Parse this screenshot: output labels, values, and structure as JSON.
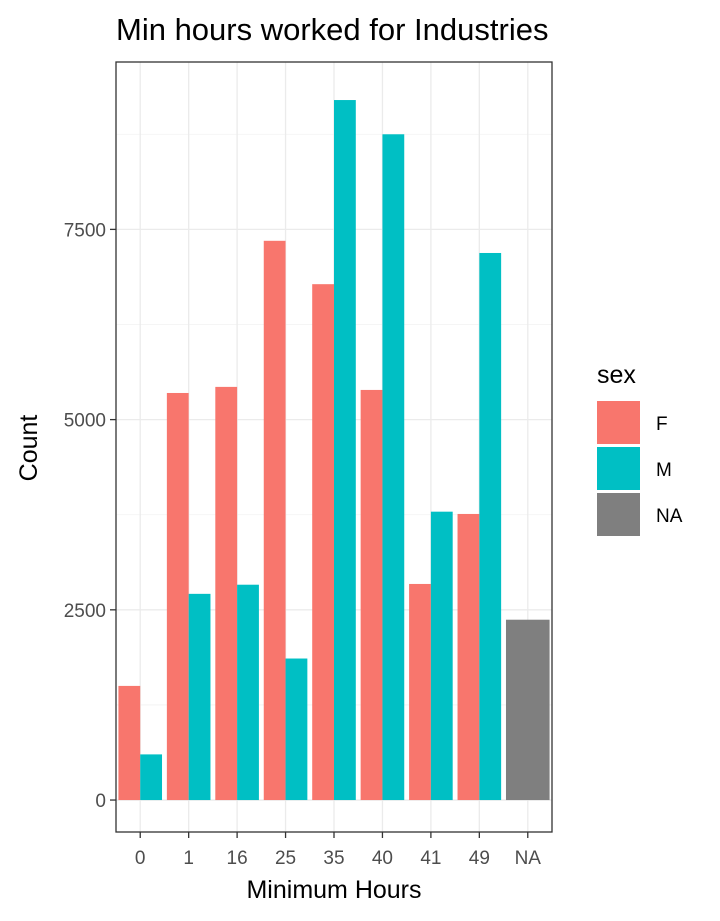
{
  "chart_data": {
    "type": "bar",
    "title": "Min hours worked for Industries",
    "xlabel": "Minimum Hours",
    "ylabel": "Count",
    "categories": [
      "0",
      "1",
      "16",
      "25",
      "35",
      "40",
      "41",
      "49",
      "NA"
    ],
    "series": [
      {
        "name": "F",
        "values": [
          1500,
          5350,
          5430,
          7350,
          6780,
          5390,
          2840,
          3760,
          null
        ]
      },
      {
        "name": "M",
        "values": [
          600,
          2710,
          2830,
          1860,
          9200,
          8750,
          3790,
          7190,
          null
        ]
      },
      {
        "name": "NA",
        "values": [
          null,
          null,
          null,
          null,
          null,
          null,
          null,
          null,
          2370
        ]
      }
    ],
    "colors": {
      "F": "#F8766D",
      "M": "#00BFC4",
      "NA": "#7F7F7F"
    },
    "yticks": [
      0,
      2500,
      5000,
      7500
    ],
    "ytick_labels": [
      "0",
      "2500",
      "5000",
      "7500"
    ],
    "ylim": [
      -420,
      9700
    ],
    "legend": {
      "title": "sex",
      "placement": "right"
    },
    "grid": true
  }
}
